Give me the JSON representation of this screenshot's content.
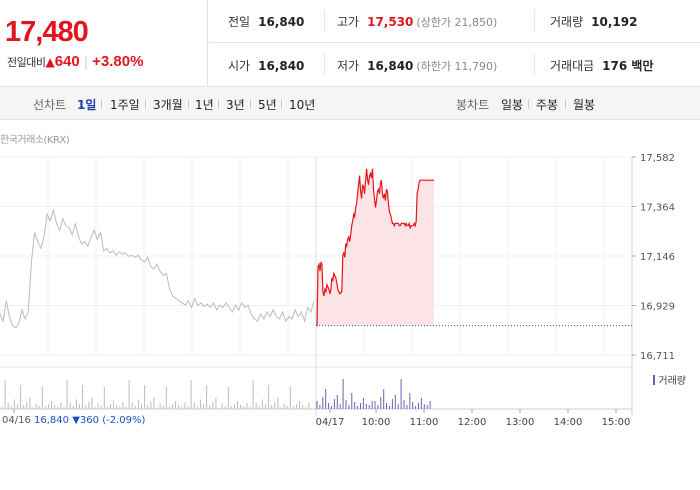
{
  "quote": {
    "price": "17,480",
    "change_label": "전일대비",
    "change_symbol": "▲",
    "change_amount": "640",
    "change_percent": "+3.80%",
    "up_color": "#e3141d"
  },
  "stats": {
    "prev_close": {
      "label": "전일",
      "value": "16,840"
    },
    "high": {
      "label": "고가",
      "value": "17,530",
      "sub": "(상한가 21,850)"
    },
    "volume": {
      "label": "거래량",
      "value": "10,192"
    },
    "open": {
      "label": "시가",
      "value": "16,840"
    },
    "low": {
      "label": "저가",
      "value": "16,840",
      "sub": "(하한가 11,790)"
    },
    "trade_value": {
      "label": "거래대금",
      "value": "176 백만"
    }
  },
  "line_tabs": {
    "label": "선차트",
    "items": [
      "1일",
      "1주일",
      "3개월",
      "1년",
      "3년",
      "5년",
      "10년"
    ],
    "active": "1일"
  },
  "candle_tabs": {
    "label": "봉차트",
    "items": [
      "일봉",
      "주봉",
      "월봉"
    ]
  },
  "source_label": "한국거래소(KRX)",
  "volume_legend": "거래량",
  "prev_day": {
    "date": "04/16",
    "price": "16,840",
    "symbol": "▼",
    "change": "360",
    "percent": "(-2.09%)"
  },
  "chart_data": {
    "type": "line",
    "title": "",
    "xlabel": "",
    "ylabel": "",
    "y_ticks": [
      "17,582",
      "17,364",
      "17,146",
      "16,929",
      "16,711"
    ],
    "ylim": [
      16711,
      17582
    ],
    "baseline": 16840,
    "x_ticks": [
      "04/16",
      "04/17",
      "10:00",
      "11:00",
      "12:00",
      "13:00",
      "14:00",
      "15:00"
    ],
    "prev_day_series": {
      "name": "",
      "color": "#bbbbbb",
      "x": [
        0,
        1,
        2,
        3,
        4,
        5,
        6,
        7,
        8,
        9,
        10,
        11,
        12,
        13,
        14,
        15,
        16,
        17,
        18,
        19,
        20,
        21,
        22,
        23,
        24,
        25,
        26,
        27,
        28,
        29,
        30,
        31,
        32,
        33,
        34,
        35,
        36,
        37,
        38,
        39,
        40,
        41,
        42,
        43,
        44,
        45,
        46,
        47,
        48,
        49,
        50,
        51,
        52,
        53,
        54,
        55,
        56,
        57,
        58,
        59,
        60,
        61,
        62,
        63,
        64,
        65,
        66,
        67,
        68,
        69,
        70,
        71,
        72,
        73,
        74,
        75,
        76,
        77,
        78,
        79,
        80,
        81,
        82,
        83,
        84,
        85,
        86,
        87,
        88,
        89,
        90,
        91,
        92,
        93,
        94,
        95,
        96,
        97,
        98,
        99,
        100
      ],
      "values": [
        16890,
        16860,
        16950,
        16880,
        16840,
        16830,
        16850,
        16910,
        16870,
        16900,
        17120,
        17250,
        17210,
        17180,
        17230,
        17330,
        17300,
        17350,
        17290,
        17260,
        17310,
        17280,
        17270,
        17240,
        17290,
        17230,
        17200,
        17210,
        17190,
        17230,
        17260,
        17220,
        17250,
        17170,
        17180,
        17160,
        17170,
        17150,
        17165,
        17155,
        17160,
        17145,
        17150,
        17140,
        17150,
        17130,
        17120,
        17140,
        17100,
        17090,
        17110,
        17080,
        17060,
        17070,
        17000,
        16970,
        16960,
        16950,
        16940,
        16930,
        16950,
        16920,
        16960,
        16930,
        16940,
        16925,
        16935,
        16920,
        16940,
        16910,
        16930,
        16920,
        16940,
        16920,
        16900,
        16930,
        16910,
        16940,
        16920,
        16930,
        16890,
        16870,
        16860,
        16890,
        16870,
        16900,
        16880,
        16910,
        16880,
        16870,
        16900,
        16860,
        16880,
        16870,
        16910,
        16880,
        16900,
        16860,
        16920,
        16900,
        16950
      ]
    },
    "today_series": {
      "name": "",
      "color": "#e3141d",
      "x": [
        0,
        1,
        2,
        3,
        4,
        5,
        6,
        7,
        8,
        9,
        10,
        11,
        12,
        13,
        14,
        15,
        16,
        17,
        18,
        19,
        20,
        21,
        22,
        23,
        24,
        25,
        26,
        27,
        28,
        29,
        30,
        31,
        32,
        33,
        34,
        35,
        36,
        37,
        38,
        39,
        40,
        41,
        42,
        43,
        44,
        45,
        46,
        47,
        48,
        49,
        50,
        51,
        52,
        53,
        54,
        55,
        56,
        57,
        58,
        59,
        60,
        61,
        62,
        63,
        64,
        65,
        66,
        67,
        68,
        69,
        70,
        71,
        72,
        73,
        74,
        75,
        76,
        77,
        78,
        79,
        80,
        81,
        82,
        83,
        84,
        85,
        86,
        87,
        88,
        89,
        90,
        91,
        92,
        93,
        94,
        95,
        96,
        97,
        98,
        99,
        100,
        101,
        102,
        103,
        104,
        105,
        106,
        107,
        108,
        109,
        110,
        111,
        112,
        113,
        114,
        115,
        116,
        117,
        118,
        119
      ],
      "values": [
        16840,
        16840,
        17100,
        17110,
        17080,
        17120,
        17110,
        16990,
        16970,
        17000,
        16990,
        17020,
        17010,
        17000,
        16980,
        17000,
        17050,
        17040,
        17070,
        17060,
        17050,
        17030,
        17000,
        16990,
        16980,
        16985,
        16990,
        17150,
        17160,
        17140,
        17200,
        17190,
        17220,
        17230,
        17210,
        17240,
        17280,
        17300,
        17330,
        17320,
        17360,
        17380,
        17420,
        17460,
        17500,
        17430,
        17400,
        17460,
        17450,
        17420,
        17480,
        17530,
        17480,
        17460,
        17500,
        17510,
        17490,
        17530,
        17440,
        17400,
        17360,
        17390,
        17430,
        17440,
        17420,
        17470,
        17480,
        17420,
        17400,
        17420,
        17390,
        17440,
        17430,
        17380,
        17340,
        17330,
        17310,
        17290,
        17290,
        17280,
        17290,
        17290,
        17290,
        17290,
        17280,
        17280,
        17290,
        17290,
        17290,
        17290,
        17280,
        17290,
        17280,
        17280,
        17290,
        17270,
        17280,
        17280,
        17280,
        17290,
        17280,
        17300,
        17420,
        17440,
        17470,
        17480,
        17480,
        17480,
        17480,
        17480,
        17480,
        17480,
        17480,
        17480,
        17480,
        17480,
        17480,
        17480,
        17480,
        17480
      ]
    },
    "volume": {
      "name": "거래량",
      "color": "#7a5ab0"
    }
  }
}
